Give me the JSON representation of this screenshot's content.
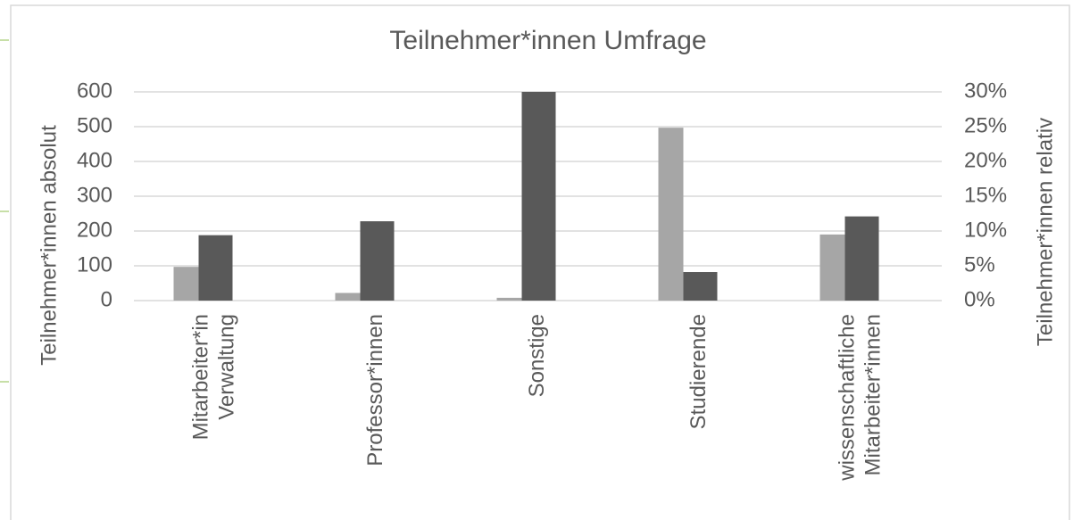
{
  "chart_data": {
    "type": "bar",
    "title": "Teilnehmer*innen Umfrage",
    "ylabel": "Teilnehmer*innen  absolut",
    "y2label": "Teilnehmer*innen  relativ",
    "categories": [
      [
        "Mitarbeiter*in",
        "Verwaltung"
      ],
      [
        "Professor*innen"
      ],
      [
        "Sonstige"
      ],
      [
        "Studierende"
      ],
      [
        "wissenschaftliche",
        "Mitarbeiter*innen"
      ]
    ],
    "series": [
      {
        "color": "#a6a6a6",
        "values": [
          97,
          22,
          8,
          497,
          190
        ]
      },
      {
        "color": "#595959",
        "axis": "y2",
        "values": [
          9.4,
          11.4,
          30,
          4.1,
          12.1
        ]
      }
    ],
    "ylim": [
      0,
      600
    ],
    "yticks": [
      0,
      100,
      200,
      300,
      400,
      500,
      600
    ],
    "y2lim": [
      0,
      30
    ],
    "y2ticks": [
      {
        "value": 0,
        "label": "0%"
      },
      {
        "value": 5,
        "label": "5%"
      },
      {
        "value": 10,
        "label": "10%"
      },
      {
        "value": 15,
        "label": "15%"
      },
      {
        "value": 20,
        "label": "20%"
      },
      {
        "value": 25,
        "label": "25%"
      },
      {
        "value": 30,
        "label": "30%"
      }
    ],
    "grid": true
  }
}
